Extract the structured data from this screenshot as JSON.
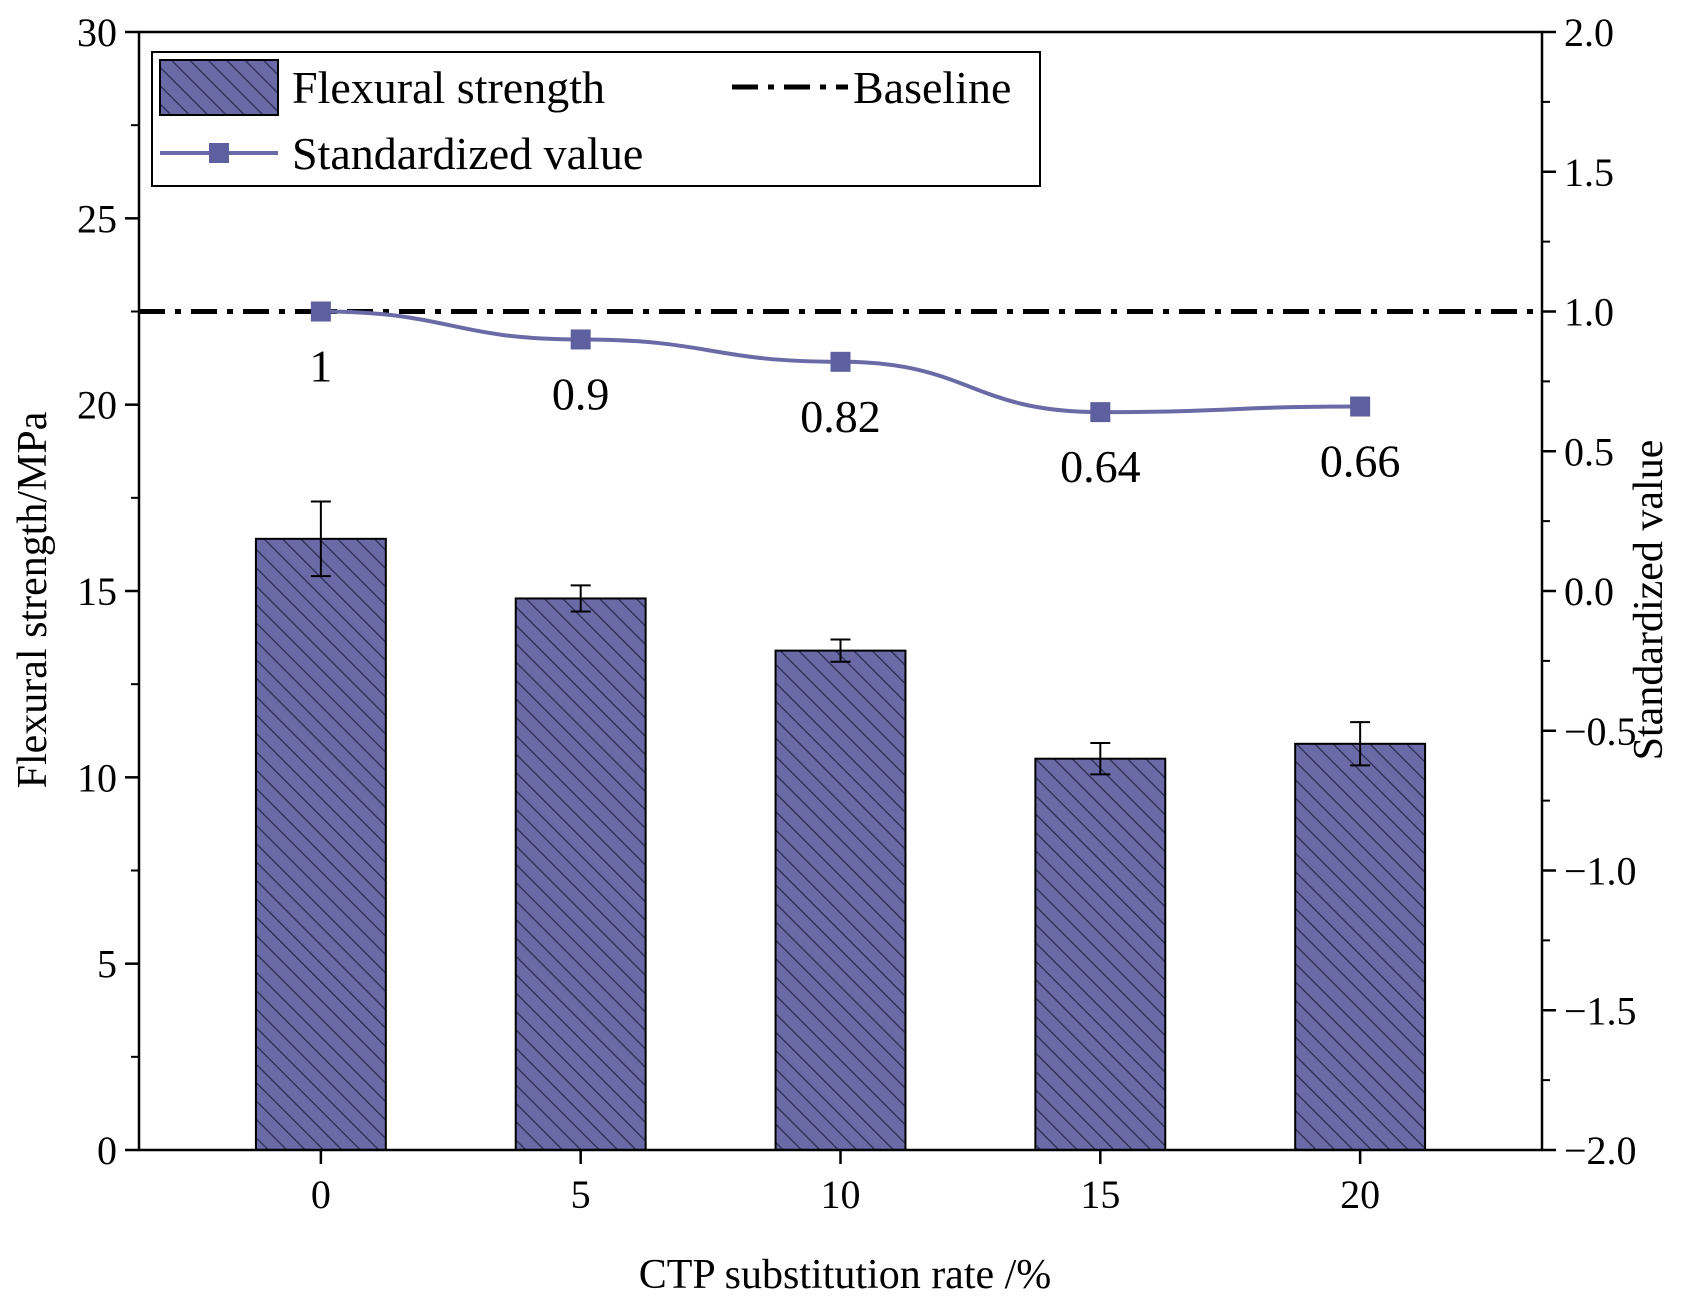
{
  "colors": {
    "bar_fill": "#6a6ba6",
    "bar_hatch": "#2b2c55",
    "line": "#6a6ba6",
    "marker": "#5e5f9e",
    "baseline": "#000000",
    "axis": "#000000"
  },
  "chart_data": {
    "type": "bar",
    "title": "",
    "xlabel": "CTP substitution rate /%",
    "ylabel": "Flexural strength/MPa",
    "y2label": "Standardized value",
    "categories": [
      "0",
      "5",
      "10",
      "15",
      "20"
    ],
    "ylim": [
      0,
      30
    ],
    "y2lim": [
      -2.0,
      2.0
    ],
    "yticks": [
      "0",
      "5",
      "10",
      "15",
      "20",
      "25",
      "30"
    ],
    "y2ticks": [
      "−2.0",
      "−1.5",
      "−1.0",
      "−0.5",
      "0.0",
      "0.5",
      "1.0",
      "1.5",
      "2.0"
    ],
    "series": [
      {
        "name": "Flexural strength",
        "type": "bar",
        "axis": "left",
        "values": [
          16.4,
          14.8,
          13.4,
          10.5,
          10.9
        ],
        "errors": [
          1.0,
          0.35,
          0.3,
          0.42,
          0.58
        ]
      },
      {
        "name": "Standardized value",
        "type": "line",
        "axis": "right",
        "values": [
          1,
          0.9,
          0.82,
          0.64,
          0.66
        ],
        "labels": [
          "1",
          "0.9",
          "0.82",
          "0.64",
          "0.66"
        ]
      },
      {
        "name": "Baseline",
        "type": "hline",
        "axis": "right",
        "value": 1.0
      }
    ],
    "legend": {
      "position": "top-left",
      "entries": [
        "Flexural strength",
        "Baseline",
        "Standardized value"
      ]
    },
    "grid": false
  }
}
